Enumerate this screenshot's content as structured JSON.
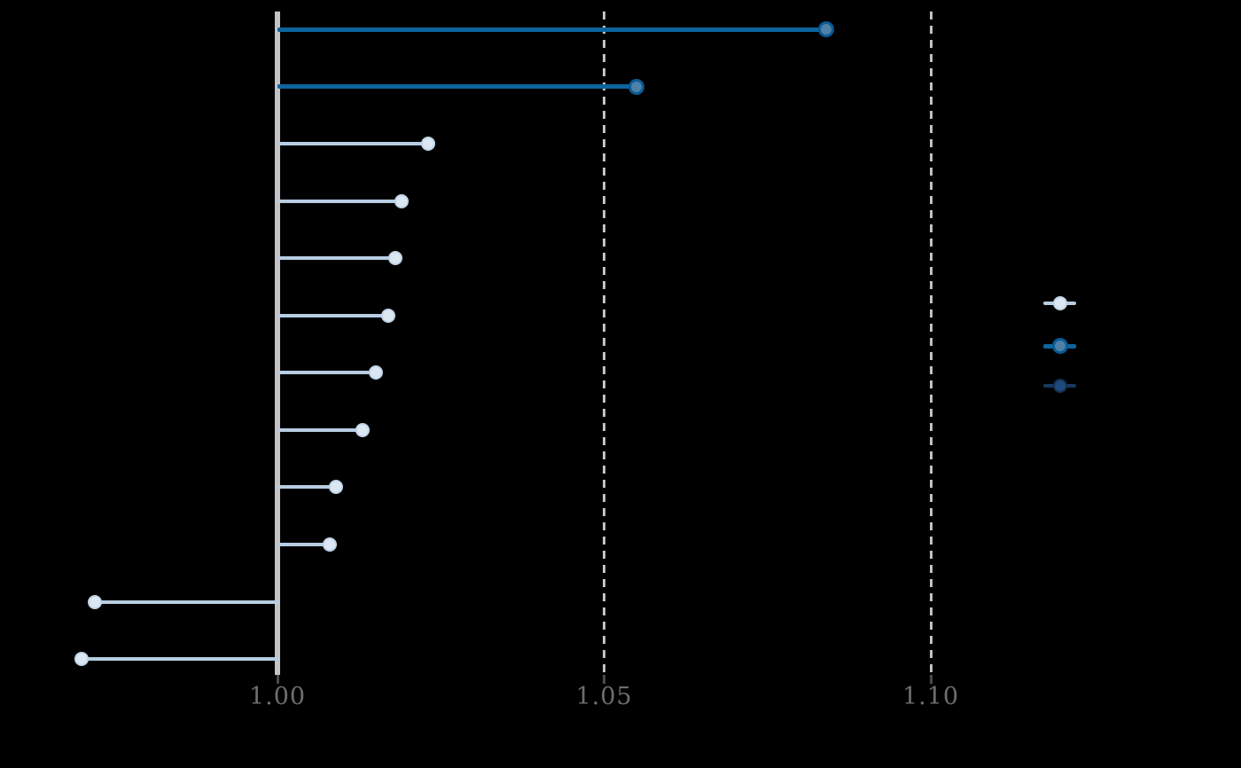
{
  "chart_data": {
    "type": "lollipop",
    "orientation": "horizontal",
    "title": "",
    "baseline_value": 1.0,
    "xlim": [
      0.9575,
      1.1475
    ],
    "grid": "dashed-vertical",
    "x_ticks": [
      {
        "value": 1.0,
        "label": "1.00"
      },
      {
        "value": 1.05,
        "label": "1.05"
      },
      {
        "value": 1.1,
        "label": "1.10"
      }
    ],
    "gridline_values": [
      1.05,
      1.1
    ],
    "points": [
      {
        "row": 1,
        "value": 1.084,
        "group": "highlight"
      },
      {
        "row": 2,
        "value": 1.055,
        "group": "highlight"
      },
      {
        "row": 3,
        "value": 1.023,
        "group": "base"
      },
      {
        "row": 4,
        "value": 1.019,
        "group": "base"
      },
      {
        "row": 5,
        "value": 1.018,
        "group": "base"
      },
      {
        "row": 6,
        "value": 1.017,
        "group": "base"
      },
      {
        "row": 7,
        "value": 1.015,
        "group": "base"
      },
      {
        "row": 8,
        "value": 1.013,
        "group": "base"
      },
      {
        "row": 9,
        "value": 1.009,
        "group": "base"
      },
      {
        "row": 10,
        "value": 1.008,
        "group": "base"
      },
      {
        "row": 11,
        "value": 0.972,
        "group": "base"
      },
      {
        "row": 12,
        "value": 0.97,
        "group": "base"
      }
    ],
    "groups": {
      "base": {
        "stem_color": "#b7cde2",
        "dot_fill": "#dbe8f3",
        "dot_edge": "#c2d5e8"
      },
      "highlight": {
        "stem_color": "#0d649e",
        "dot_fill": "#4e81a7",
        "dot_edge": "#0a5a94"
      },
      "dark": {
        "stem_color": "#173860",
        "dot_fill": "#1d4a7c",
        "dot_edge": "#12304f"
      }
    },
    "legend": {
      "position": "right",
      "entries": [
        {
          "group": "base",
          "label": ""
        },
        {
          "group": "highlight",
          "label": ""
        },
        {
          "group": "dark",
          "label": ""
        }
      ]
    },
    "colors": {
      "background": "#000000",
      "axis_spine": "#c3c3c5",
      "gridline": "#c2c2c2",
      "tick_mark": "#4a4a4a",
      "tick_label": "#6e6e6e"
    }
  }
}
